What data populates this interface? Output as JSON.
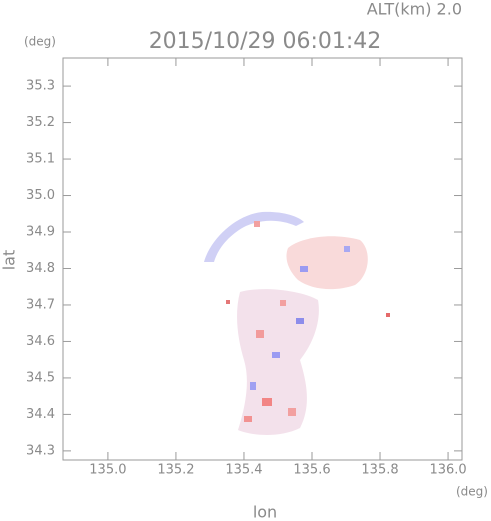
{
  "chart_data": {
    "type": "map",
    "title": "2015/10/29 06:01:42",
    "subtitle": "ALT(km) 2.0",
    "x_label": "lon",
    "x_unit": "(deg)",
    "y_label": "lat",
    "y_unit": "(deg)",
    "xlim": [
      134.868,
      136.041
    ],
    "ylim": [
      34.275,
      35.377
    ],
    "xticks": [
      {
        "value": 135.0,
        "label": "135.0"
      },
      135.2,
      135.4,
      135.6,
      135.8,
      {
        "value": 136.0,
        "label": "136.0"
      }
    ],
    "yticks": [
      34.3,
      34.4,
      34.5,
      34.6,
      34.7,
      34.8,
      34.9,
      {
        "value": 35.0,
        "label": "35.0"
      },
      35.1,
      35.2,
      35.3
    ]
  }
}
